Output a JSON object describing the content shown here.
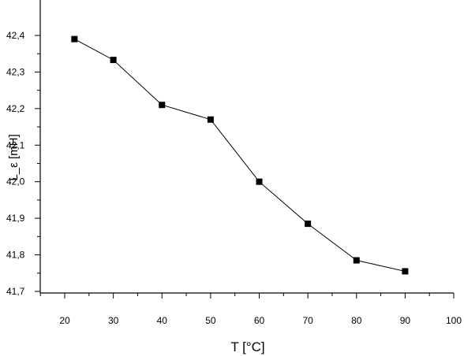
{
  "chart_data": {
    "type": "line",
    "title": "",
    "xlabel": "T [°C]",
    "ylabel": "L_ε [mH]",
    "xlim": [
      15,
      100
    ],
    "ylim": [
      41.7,
      42.45
    ],
    "x_ticks": [
      20,
      30,
      40,
      50,
      60,
      70,
      80,
      90,
      100
    ],
    "x_tick_labels": [
      "20",
      "30",
      "40",
      "50",
      "60",
      "70",
      "80",
      "90",
      "100"
    ],
    "y_ticks": [
      41.7,
      41.8,
      41.9,
      42.0,
      42.1,
      42.2,
      42.3,
      42.4
    ],
    "y_tick_labels": [
      "41,7",
      "41,8",
      "41,9",
      "42,0",
      "42,1",
      "42,2",
      "42,3",
      "42,4"
    ],
    "grid": false,
    "series": [
      {
        "marker": "square",
        "color": "#000000",
        "x": [
          22,
          30,
          40,
          50,
          60,
          70,
          80,
          90
        ],
        "y": [
          42.39,
          42.333,
          42.21,
          42.17,
          42.0,
          41.885,
          41.785,
          41.755
        ]
      }
    ]
  }
}
